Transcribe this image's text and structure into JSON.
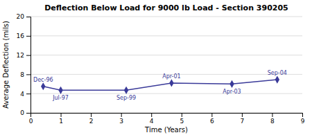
{
  "chart_data": {
    "type": "line",
    "title": "Deflection Below Load for 9000 lb Load - Section 390205",
    "x_label": "Time (Years)",
    "y_label": "Average Deflection (mils)",
    "x": [
      0.42,
      1.0,
      3.17,
      4.67,
      6.67,
      8.17
    ],
    "values": [
      5.5,
      4.7,
      4.7,
      6.2,
      6.0,
      6.9
    ],
    "xlim": [
      0,
      9
    ],
    "ylim": [
      0,
      20
    ],
    "xticks": [
      0,
      1,
      2,
      3,
      4,
      5,
      6,
      7,
      8,
      9
    ],
    "yticks": [
      0,
      4,
      8,
      12,
      16,
      20
    ],
    "color": "#3a3a99",
    "marker": "diamond",
    "grid": "y",
    "annotations": [
      {
        "label": "Dec-96",
        "x": 0.42,
        "y": 5.5
      },
      {
        "label": "Jul-97",
        "x": 1.0,
        "y": 4.7
      },
      {
        "label": "Sep-99",
        "x": 3.17,
        "y": 4.7
      },
      {
        "label": "Apr-01",
        "x": 4.67,
        "y": 6.2
      },
      {
        "label": "Apr-03",
        "x": 6.67,
        "y": 6.0
      },
      {
        "label": "Sep-04",
        "x": 8.17,
        "y": 6.9
      }
    ]
  }
}
